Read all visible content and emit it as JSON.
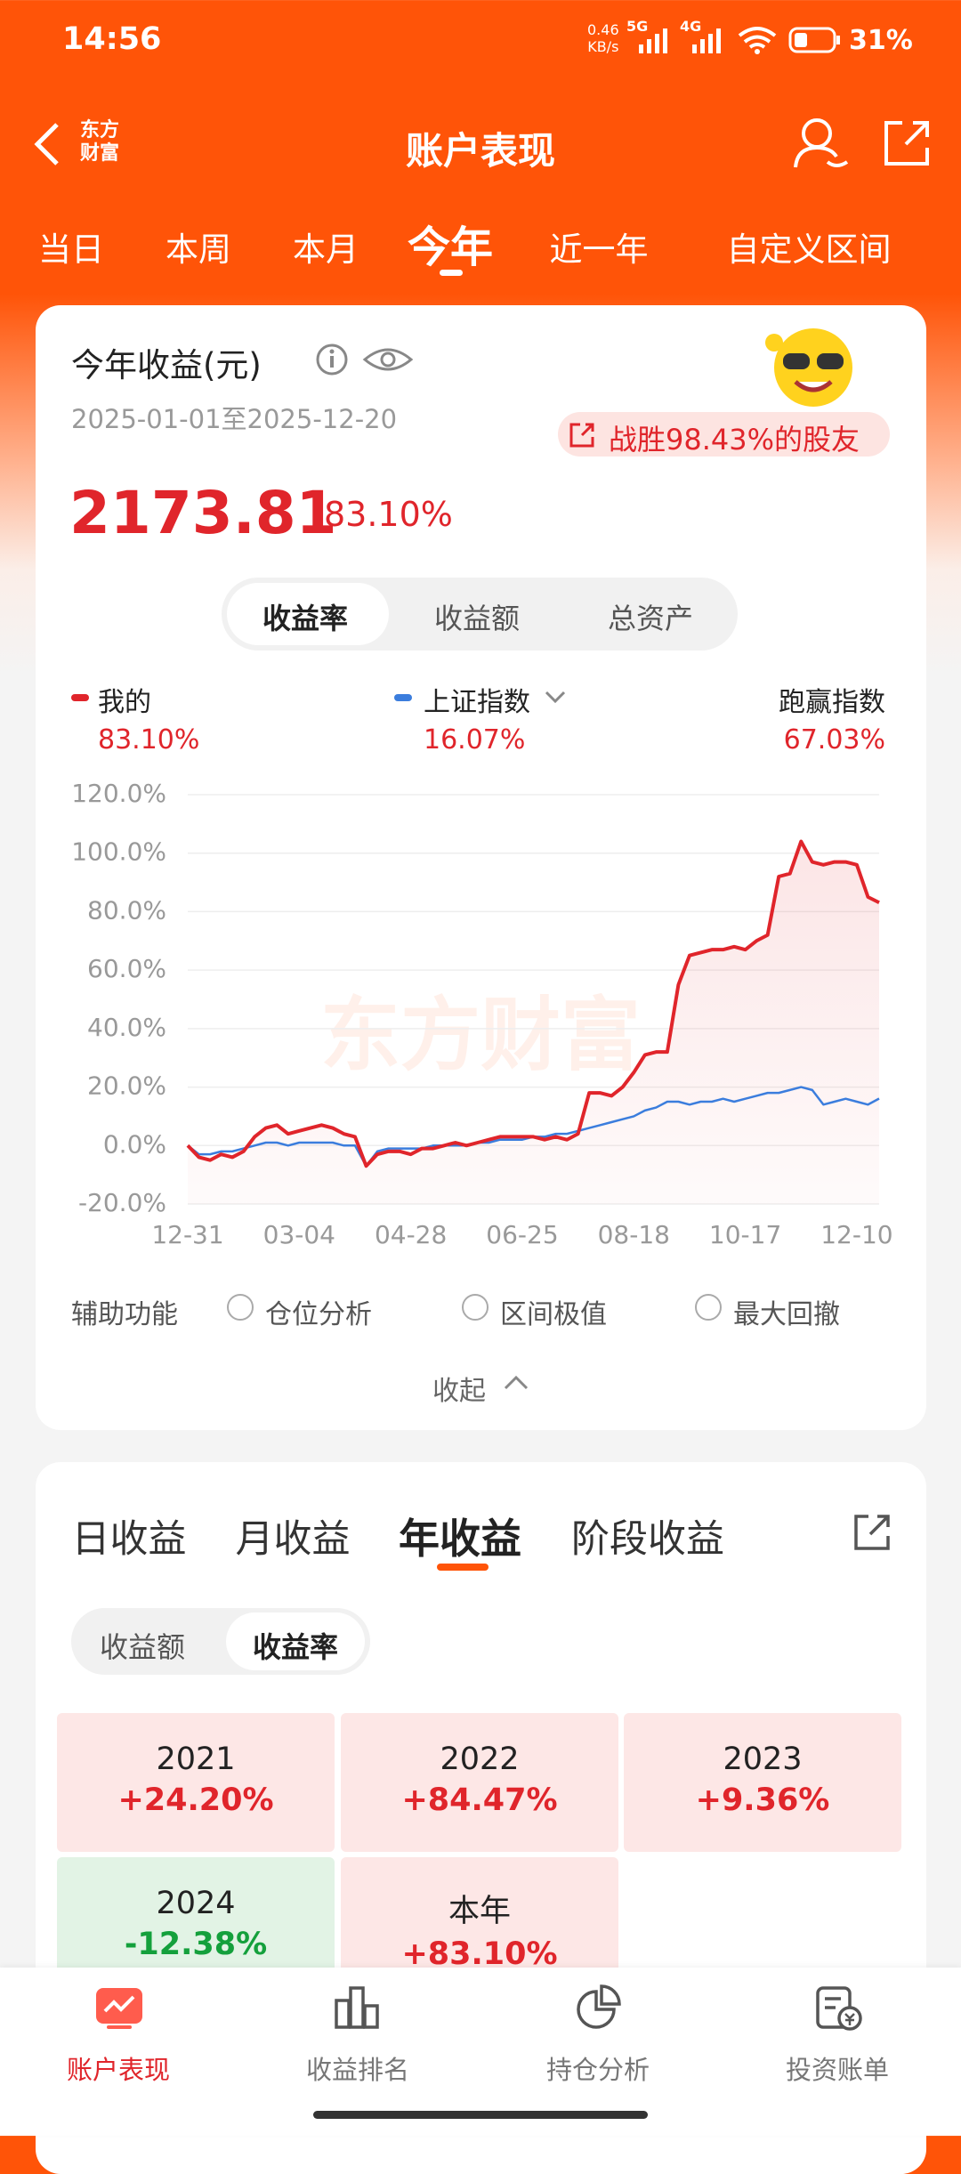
{
  "status_bar": {
    "time": "14:56",
    "speed": "0.46",
    "speed_unit": "KB/s",
    "net1": "5G",
    "net2": "4G",
    "battery": "31%"
  },
  "header": {
    "logo": [
      "东方",
      "财富"
    ],
    "title": "账户表现"
  },
  "period_tabs": [
    "当日",
    "本周",
    "本月",
    "今年",
    "近一年",
    "自定义区间"
  ],
  "summary": {
    "title": "今年收益(元)",
    "date_range": "2025-01-01至2025-12-20",
    "badge": "战胜98.43%的股友",
    "amount": "2173.81",
    "rate": "83.10%",
    "segments": [
      "收益率",
      "收益额",
      "总资产"
    ],
    "legend_values": [
      "83.10%",
      "16.07%"
    ],
    "excess_label": "跑赢指数",
    "excess_value": "67.03%",
    "watermark": "东方财富",
    "aux_label": "辅助功能",
    "aux_options": [
      "仓位分析",
      "区间极值",
      "最大回撤"
    ],
    "collapse": "收起"
  },
  "chart_data": {
    "type": "line",
    "categories": [
      "12-31",
      null,
      null,
      null,
      null,
      null,
      null,
      null,
      null,
      null,
      "03-04",
      null,
      null,
      null,
      null,
      null,
      null,
      null,
      null,
      null,
      "04-28",
      null,
      null,
      null,
      null,
      null,
      null,
      null,
      null,
      null,
      "06-25",
      null,
      null,
      null,
      null,
      null,
      null,
      null,
      null,
      null,
      "08-18",
      null,
      null,
      null,
      null,
      null,
      null,
      null,
      null,
      null,
      "10-17",
      null,
      null,
      null,
      null,
      null,
      null,
      null,
      null,
      null,
      "12-10",
      null,
      null
    ],
    "series": [
      {
        "name": "我的",
        "color": "#e0252b",
        "values": [
          0,
          -4,
          -5,
          -3,
          -4,
          -2,
          3,
          6,
          7,
          4,
          5,
          6,
          7,
          6,
          4,
          3,
          -7,
          -3,
          -2,
          -2,
          -3,
          -1,
          -1,
          0,
          1,
          0,
          1,
          2,
          3,
          3,
          3,
          3,
          2,
          3,
          2,
          4,
          18,
          18,
          17,
          20,
          25,
          31,
          32,
          32,
          55,
          65,
          66,
          67,
          67,
          68,
          67,
          70,
          72,
          92,
          93,
          104,
          97,
          96,
          97,
          97,
          96,
          85,
          83.1
        ]
      },
      {
        "name": "上证指数",
        "color": "#3b7ddd",
        "values": [
          0,
          -3,
          -3,
          -2,
          -2,
          -1,
          0,
          1,
          1,
          0,
          1,
          1,
          1,
          1,
          0,
          0,
          -7,
          -2,
          -1,
          -1,
          -1,
          -1,
          0,
          0,
          0,
          0,
          1,
          1,
          2,
          2,
          2,
          3,
          3,
          4,
          4,
          5,
          6,
          7,
          8,
          9,
          10,
          12,
          13,
          15,
          15,
          14,
          15,
          15,
          16,
          15,
          16,
          17,
          18,
          18,
          19,
          20,
          19,
          14,
          15,
          16,
          15,
          14,
          16.07
        ]
      }
    ],
    "ylim": [
      -20,
      120
    ],
    "yticks": [
      {
        "value": -20,
        "label": "-20.0%"
      },
      {
        "value": 0,
        "label": "0.0%"
      },
      {
        "value": 20,
        "label": "20.0%"
      },
      {
        "value": 40,
        "label": "40.0%"
      },
      {
        "value": 60,
        "label": "60.0%"
      },
      {
        "value": 80,
        "label": "80.0%"
      },
      {
        "value": 100,
        "label": "100.0%"
      },
      {
        "value": 120,
        "label": "120.0%"
      }
    ],
    "grid": true,
    "area": true
  },
  "yearly": {
    "tabs": [
      "日收益",
      "月收益",
      "年收益",
      "阶段收益"
    ],
    "segments": [
      "收益额",
      "收益率"
    ],
    "cells": [
      {
        "year": "2021",
        "value": "+24.20%"
      },
      {
        "year": "2022",
        "value": "+84.47%"
      },
      {
        "year": "2023",
        "value": "+9.36%"
      },
      {
        "year": "2024",
        "value": "-12.38%"
      },
      {
        "year": "本年",
        "value": "+83.10%"
      }
    ]
  },
  "bottom_nav": [
    "账户表现",
    "收益排名",
    "持仓分析",
    "投资账单"
  ]
}
